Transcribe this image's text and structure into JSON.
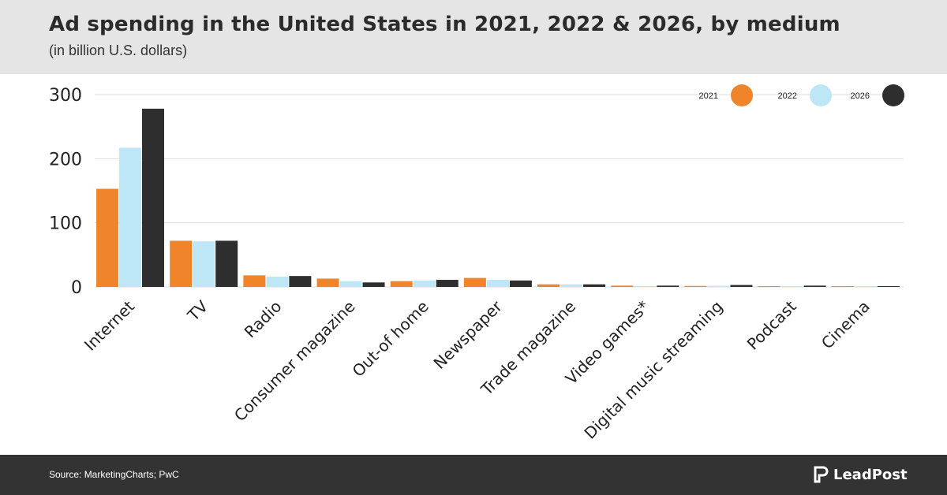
{
  "header": {
    "title": "Ad spending in the United States in 2021, 2022 & 2026, by medium",
    "subtitle": "(in billion U.S. dollars)"
  },
  "footer": {
    "source": "Source: MarketingCharts; PwC",
    "brand": "LeadPost",
    "brand_icon": "leadpost-logo-icon"
  },
  "colors": {
    "2021": "#f0842b",
    "2022": "#bde7f7",
    "2026": "#2e2e2e",
    "grid": "#dddddd",
    "axis_text": "#222222"
  },
  "chart_data": {
    "type": "bar",
    "title": "Ad spending in the United States in 2021, 2022 & 2026, by medium",
    "subtitle": "(in billion U.S. dollars)",
    "xlabel": "",
    "ylabel": "",
    "ylim": [
      0,
      300
    ],
    "yticks": [
      0,
      100,
      200,
      300
    ],
    "grid": true,
    "legend_position": "top-right",
    "categories": [
      "Internet",
      "TV",
      "Radio",
      "Consumer magazine",
      "Out-of home",
      "Newspaper",
      "Trade magazine",
      "Video games*",
      "Digital music streaming",
      "Podcast",
      "Cinema"
    ],
    "series": [
      {
        "name": "2021",
        "color": "#f0842b",
        "values": [
          153,
          72,
          18,
          13,
          9,
          14,
          4,
          2,
          1.5,
          1,
          0.8
        ]
      },
      {
        "name": "2022",
        "color": "#bde7f7",
        "values": [
          217,
          71,
          16,
          9,
          10,
          11,
          4,
          1.5,
          1.8,
          1.2,
          0.6
        ]
      },
      {
        "name": "2026",
        "color": "#2e2e2e",
        "values": [
          278,
          72,
          17,
          7,
          11,
          10,
          4,
          2,
          3,
          2,
          1
        ]
      }
    ]
  }
}
